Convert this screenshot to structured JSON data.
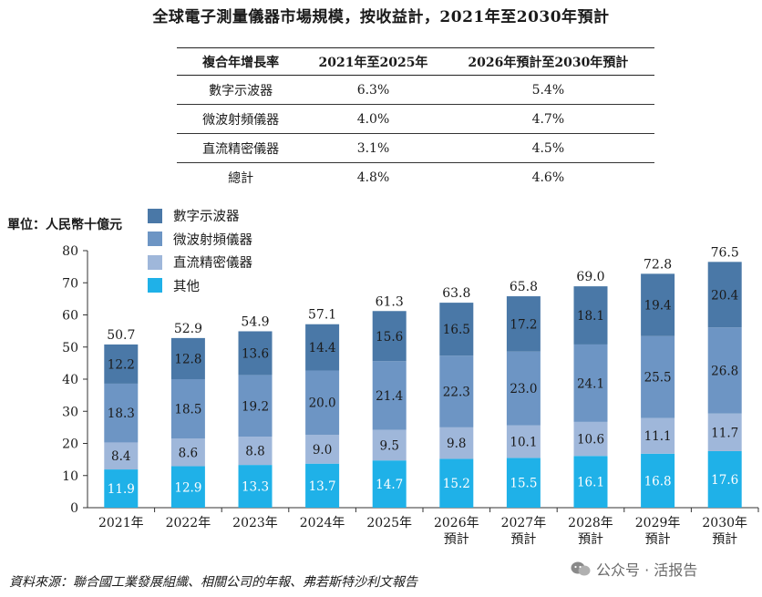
{
  "title": "全球電子測量儀器市場規模，按收益計，2021年至2030年預計",
  "cagr_table": {
    "headers": [
      "複合年增長率",
      "2021年至2025年",
      "2026年預計至2030年預計"
    ],
    "rows": [
      [
        "數字示波器",
        "6.3%",
        "5.4%"
      ],
      [
        "微波射頻儀器",
        "4.0%",
        "4.7%"
      ],
      [
        "直流精密儀器",
        "3.1%",
        "4.5%"
      ],
      [
        "總計",
        "4.8%",
        "4.6%"
      ]
    ]
  },
  "unit_label": "單位：人民幣十億元",
  "source": "資料來源：聯合國工業發展組織、相關公司的年報、弗若斯特沙利文報告",
  "watermark": "公众号 · 活报告",
  "colors": {
    "數字示波器": "#4a78a7",
    "微波射頻儀器": "#6d95c4",
    "直流精密儀器": "#9fb7da",
    "其他": "#1fb1e8"
  },
  "chart_data": {
    "type": "bar",
    "stacked": true,
    "categories": [
      "2021年",
      "2022年",
      "2023年",
      "2024年",
      "2025年",
      "2026年\n預計",
      "2027年\n預計",
      "2028年\n預計",
      "2029年\n預計",
      "2030年\n預計"
    ],
    "series": [
      {
        "name": "其他",
        "values": [
          11.9,
          12.9,
          13.3,
          13.7,
          14.7,
          15.2,
          15.5,
          16.1,
          16.8,
          17.6
        ]
      },
      {
        "name": "直流精密儀器",
        "values": [
          8.4,
          8.6,
          8.8,
          9.0,
          9.5,
          9.8,
          10.1,
          10.6,
          11.1,
          11.7
        ]
      },
      {
        "name": "微波射頻儀器",
        "values": [
          18.3,
          18.5,
          19.2,
          20.0,
          21.4,
          22.3,
          23.0,
          24.1,
          25.5,
          26.8
        ]
      },
      {
        "name": "數字示波器",
        "values": [
          12.2,
          12.8,
          13.6,
          14.4,
          15.6,
          16.5,
          17.2,
          18.1,
          19.4,
          20.4
        ]
      }
    ],
    "totals": [
      50.7,
      52.9,
      54.9,
      57.1,
      61.3,
      63.8,
      65.8,
      69.0,
      72.8,
      76.5
    ],
    "legend_order": [
      "數字示波器",
      "微波射頻儀器",
      "直流精密儀器",
      "其他"
    ],
    "legend_position": "top-left",
    "ylim": [
      0,
      80
    ],
    "yticks": [
      0,
      10,
      20,
      30,
      40,
      50,
      60,
      70,
      80
    ],
    "grid": false
  }
}
